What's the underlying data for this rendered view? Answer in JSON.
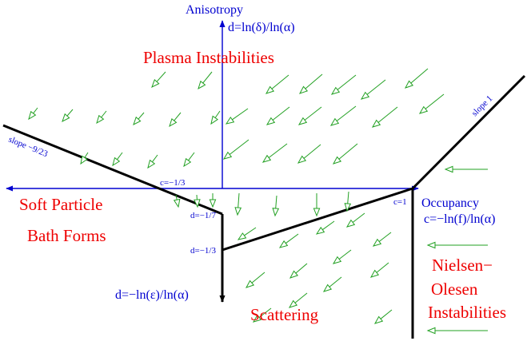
{
  "axes": {
    "y_title": "Anisotropy",
    "y_formula": "d=ln(δ)/ln(α)",
    "x_title": "Occupancy",
    "x_formula": "c=−ln(f)/ln(α)",
    "y_negative_formula": "d=−ln(ε)/ln(α)"
  },
  "regions": {
    "plasma": "Plasma Instabilities",
    "soft_line1": "Soft Particle",
    "soft_line2": "Bath Forms",
    "nielsen_line1": "Nielsen−",
    "nielsen_line2": "Olesen",
    "nielsen_line3": "Instabilities",
    "scattering": "Scattering"
  },
  "markers": {
    "slope_left": "slope −9/23",
    "slope_right": "slope 1",
    "c_neg": "c=−1/3",
    "c_one": "c=1",
    "d_neg7": "d=−1/7",
    "d_neg3": "d=−1/3"
  },
  "colors": {
    "axis": "#0000d0",
    "region_text": "#ee0000",
    "arrows": "#22a022",
    "boundary": "#000000"
  }
}
